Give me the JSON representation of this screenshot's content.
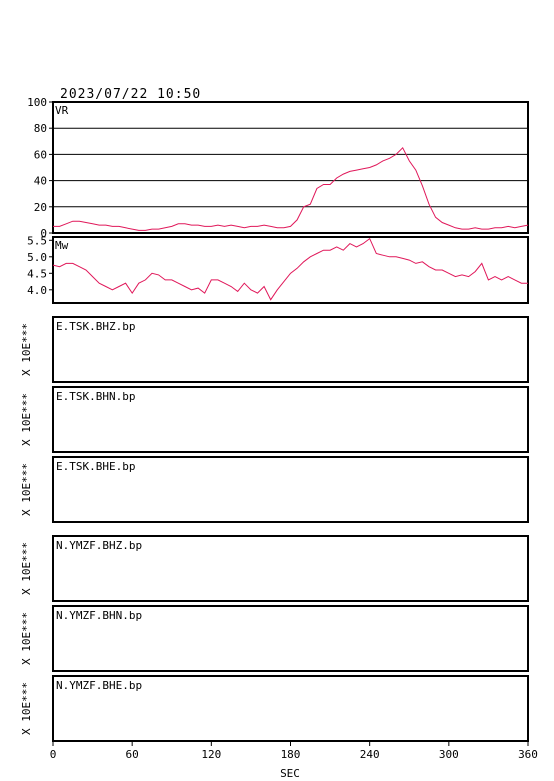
{
  "timestamp": "2023/07/22 10:50",
  "x_axis_label": "SEC",
  "x_ticks": [
    "0",
    "60",
    "120",
    "180",
    "240",
    "300",
    "360"
  ],
  "exp_label": "X 10E***",
  "colors": {
    "trace": "#e0185a"
  },
  "chart_data": [
    {
      "type": "line",
      "name": "VR",
      "series_label": "VR",
      "ylim": [
        0,
        100
      ],
      "xlim": [
        0,
        360
      ],
      "y_ticks": [
        "0",
        "20",
        "40",
        "60",
        "80",
        "100"
      ],
      "y_tick_values": [
        0,
        20,
        40,
        60,
        80,
        100
      ],
      "grid": true,
      "x": [
        0,
        5,
        10,
        15,
        20,
        25,
        30,
        35,
        40,
        45,
        50,
        55,
        60,
        65,
        70,
        75,
        80,
        85,
        90,
        95,
        100,
        105,
        110,
        115,
        120,
        125,
        130,
        135,
        140,
        145,
        150,
        155,
        160,
        165,
        170,
        175,
        180,
        185,
        190,
        195,
        200,
        205,
        210,
        215,
        220,
        225,
        230,
        235,
        240,
        245,
        250,
        255,
        260,
        265,
        270,
        275,
        280,
        285,
        290,
        295,
        300,
        305,
        310,
        315,
        320,
        325,
        330,
        335,
        340,
        345,
        350,
        355,
        360
      ],
      "y": [
        5,
        5,
        7,
        9,
        9,
        8,
        7,
        6,
        6,
        5,
        5,
        4,
        3,
        2,
        2,
        3,
        3,
        4,
        5,
        7,
        7,
        6,
        6,
        5,
        5,
        6,
        5,
        6,
        5,
        4,
        5,
        5,
        6,
        5,
        4,
        4,
        5,
        10,
        20,
        22,
        34,
        37,
        37,
        42,
        45,
        47,
        48,
        49,
        50,
        52,
        55,
        57,
        60,
        65,
        55,
        48,
        36,
        22,
        12,
        8,
        6,
        4,
        3,
        3,
        4,
        3,
        3,
        4,
        4,
        5,
        4,
        5,
        6
      ]
    },
    {
      "type": "line",
      "name": "Mw",
      "series_label": "Mw",
      "ylim": [
        3.6,
        5.6
      ],
      "xlim": [
        0,
        360
      ],
      "y_ticks": [
        "4.0",
        "4.5",
        "5.0",
        "5.5"
      ],
      "y_tick_values": [
        4.0,
        4.5,
        5.0,
        5.5
      ],
      "grid": false,
      "x": [
        0,
        5,
        10,
        15,
        20,
        25,
        30,
        35,
        40,
        45,
        50,
        55,
        60,
        65,
        70,
        75,
        80,
        85,
        90,
        95,
        100,
        105,
        110,
        115,
        120,
        125,
        130,
        135,
        140,
        145,
        150,
        155,
        160,
        165,
        170,
        175,
        180,
        185,
        190,
        195,
        200,
        205,
        210,
        215,
        220,
        225,
        230,
        235,
        240,
        245,
        250,
        255,
        260,
        265,
        270,
        275,
        280,
        285,
        290,
        295,
        300,
        305,
        310,
        315,
        320,
        325,
        330,
        335,
        340,
        345,
        350,
        355,
        360
      ],
      "y": [
        4.75,
        4.7,
        4.8,
        4.8,
        4.7,
        4.6,
        4.4,
        4.2,
        4.1,
        4.0,
        4.1,
        4.2,
        3.9,
        4.2,
        4.3,
        4.5,
        4.45,
        4.3,
        4.3,
        4.2,
        4.1,
        4.0,
        4.05,
        3.9,
        4.3,
        4.3,
        4.2,
        4.1,
        3.95,
        4.2,
        4.0,
        3.9,
        4.1,
        3.7,
        4.0,
        4.25,
        4.5,
        4.65,
        4.85,
        5.0,
        5.1,
        5.2,
        5.2,
        5.3,
        5.2,
        5.4,
        5.3,
        5.4,
        5.55,
        5.1,
        5.05,
        5.0,
        5.0,
        4.95,
        4.9,
        4.8,
        4.85,
        4.7,
        4.6,
        4.6,
        4.5,
        4.4,
        4.45,
        4.4,
        4.55,
        4.8,
        4.3,
        4.4,
        4.3,
        4.4,
        4.3,
        4.2,
        4.2
      ]
    }
  ],
  "stations": [
    {
      "label": "E.TSK.BHZ.bp"
    },
    {
      "label": "E.TSK.BHN.bp"
    },
    {
      "label": "E.TSK.BHE.bp"
    },
    {
      "label": "N.YMZF.BHZ.bp"
    },
    {
      "label": "N.YMZF.BHN.bp"
    },
    {
      "label": "N.YMZF.BHE.bp"
    }
  ]
}
